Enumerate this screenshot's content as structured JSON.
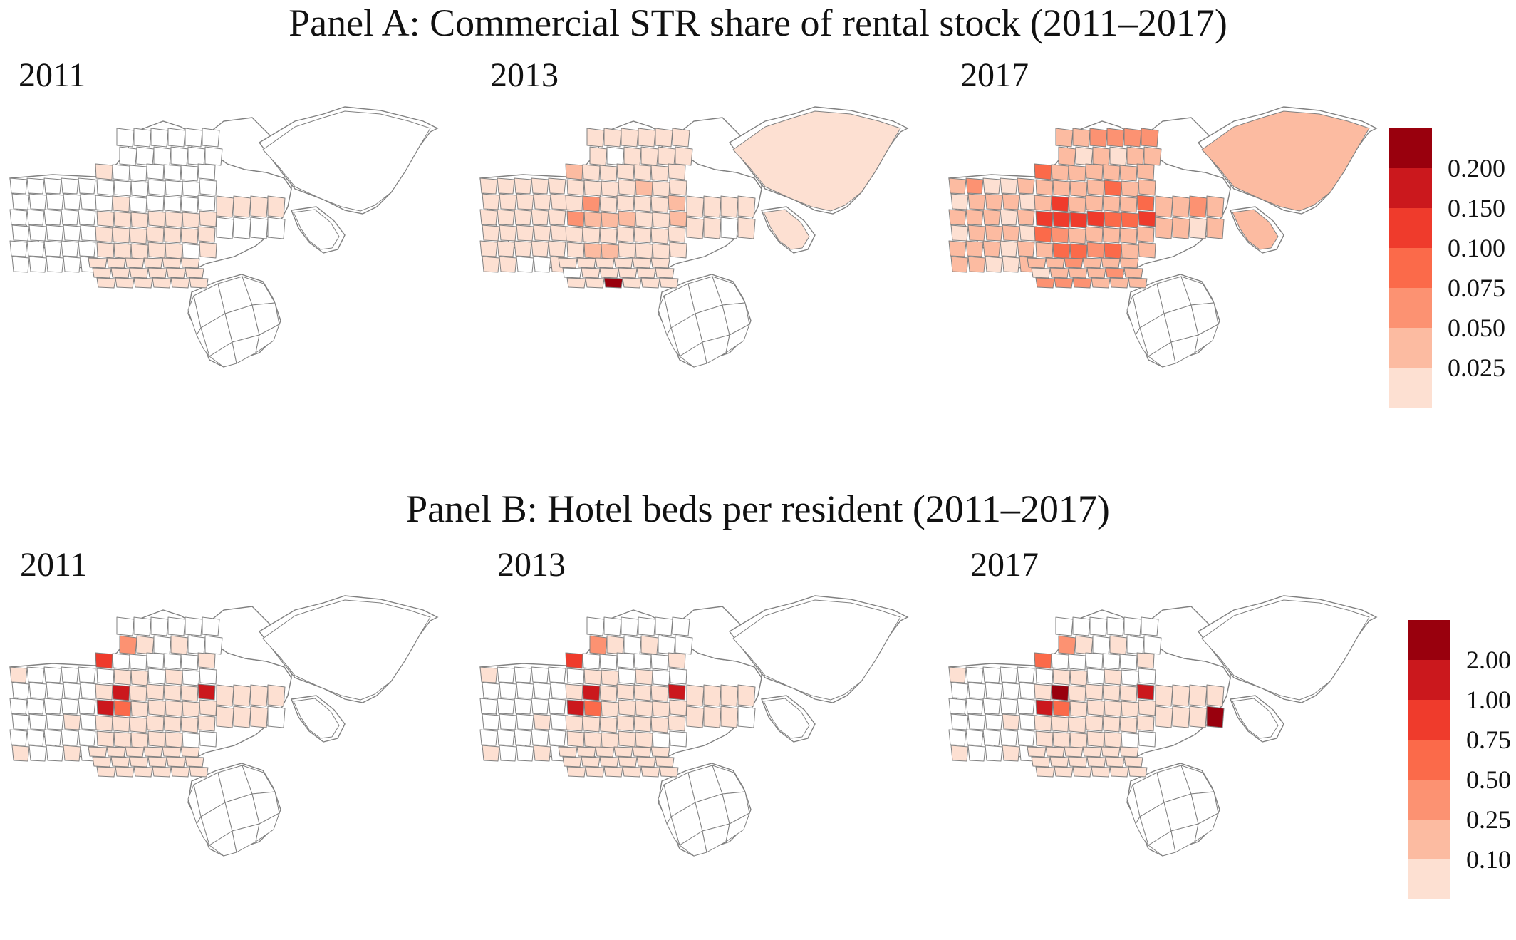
{
  "panels": [
    {
      "title": "Panel A: Commercial STR share of rental stock (2011–2017)",
      "maps": [
        {
          "year": "2011",
          "fills": [
            "n",
            "n",
            "n",
            "n",
            "n",
            "n",
            "n",
            "n",
            "n",
            "n",
            "n",
            "n",
            "n",
            "n",
            "n",
            "n",
            "n",
            "n",
            "n",
            "n",
            "n",
            "n",
            "n",
            "n",
            "n",
            "n",
            "n",
            "n",
            "n",
            "n",
            "n",
            "n",
            "n",
            "n",
            "n",
            "n",
            "n",
            "n",
            "n",
            "n",
            "n",
            "n",
            "0",
            "n",
            "n",
            "n",
            "n",
            "n",
            "n",
            "n",
            "n",
            "n",
            "n",
            "n",
            "n",
            "n",
            "n",
            "0",
            "n",
            "n",
            "n",
            "n",
            "n",
            "0",
            "0",
            "0",
            "0",
            "0",
            "0",
            "0",
            "0",
            "0",
            "0",
            "0",
            "0",
            "0",
            "0",
            "0",
            "0",
            "0",
            "0",
            "0",
            "n",
            "0",
            "0",
            "0",
            "0",
            "0",
            "0",
            "0",
            "0",
            "0",
            "0",
            "0",
            "0",
            "0",
            "0",
            "0",
            "0",
            "0",
            "0",
            "0",
            "0",
            "0",
            "0",
            "0",
            "n",
            "n",
            "n",
            "n",
            "n",
            "n"
          ]
        },
        {
          "year": "2013",
          "fills": [
            "0",
            "0",
            "0",
            "0",
            "0",
            "0",
            "0",
            "0",
            "0",
            "0",
            "0",
            "0",
            "0",
            "0",
            "0",
            "0",
            "0",
            "0",
            "0",
            "0",
            "0",
            "0",
            "0",
            "0",
            "0",
            "0",
            "0",
            "n",
            "n",
            "0",
            "0",
            "0",
            "0",
            "0",
            "0",
            "0",
            "0",
            "n",
            "0",
            "0",
            "0",
            "0",
            "1",
            "0",
            "0",
            "0",
            "0",
            "0",
            "0",
            "0",
            "0",
            "0",
            "0",
            "1",
            "0",
            "0",
            "0",
            "2",
            "0",
            "0",
            "0",
            "0",
            "1",
            "2",
            "1",
            "1",
            "1",
            "0",
            "0",
            "1",
            "0",
            "0",
            "0",
            "0",
            "0",
            "0",
            "0",
            "0",
            "1",
            "1",
            "0",
            "0",
            "0",
            "0",
            "0",
            "0",
            "0",
            "0",
            "0",
            "0",
            "n",
            "0",
            "0",
            "0",
            "0",
            "0",
            "0",
            "0",
            "6",
            "0",
            "0",
            "0",
            "0",
            "0",
            "0",
            "0",
            "0",
            "0",
            "n",
            "0",
            "0",
            "0"
          ]
        },
        {
          "year": "2017",
          "fills": [
            "1",
            "2",
            "0",
            "0",
            "1",
            "0",
            "1",
            "1",
            "1",
            "0",
            "1",
            "1",
            "1",
            "0",
            "1",
            "0",
            "1",
            "1",
            "1",
            "0",
            "1",
            "1",
            "1",
            "0",
            "1",
            "1",
            "1",
            "0",
            "0",
            "1",
            "1",
            "1",
            "2",
            "2",
            "2",
            "2",
            "1",
            "0",
            "1",
            "0",
            "1",
            "1",
            "3",
            "1",
            "1",
            "1",
            "1",
            "1",
            "1",
            "1",
            "1",
            "1",
            "1",
            "3",
            "1",
            "1",
            "1",
            "4",
            "1",
            "1",
            "1",
            "1",
            "3",
            "4",
            "4",
            "4",
            "4",
            "3",
            "3",
            "4",
            "3",
            "2",
            "1",
            "1",
            "1",
            "1",
            "1",
            "1",
            "3",
            "3",
            "2",
            "3",
            "1",
            "1",
            "1",
            "1",
            "2",
            "1",
            "1",
            "1",
            "0",
            "1",
            "1",
            "1",
            "2",
            "1",
            "2",
            "2",
            "2",
            "1",
            "1",
            "1",
            "1",
            "1",
            "2",
            "1",
            "1",
            "1",
            "0",
            "1",
            "1",
            "1"
          ]
        }
      ],
      "legend": {
        "ticks": [
          "0.200",
          "0.150",
          "0.100",
          "0.075",
          "0.050",
          "0.025"
        ]
      }
    },
    {
      "title": "Panel B: Hotel beds per resident (2011–2017)",
      "maps": [
        {
          "year": "2011",
          "fills": [
            "0",
            "n",
            "n",
            "n",
            "n",
            "n",
            "n",
            "n",
            "n",
            "n",
            "n",
            "n",
            "n",
            "n",
            "n",
            "n",
            "n",
            "n",
            "0",
            "n",
            "n",
            "n",
            "n",
            "n",
            "n",
            "0",
            "n",
            "n",
            "0",
            "n",
            "n",
            "n",
            "n",
            "n",
            "n",
            "n",
            "2",
            "0",
            "n",
            "0",
            "n",
            "n",
            "4",
            "n",
            "n",
            "n",
            "n",
            "n",
            "0",
            "n",
            "0",
            "0",
            "n",
            "0",
            "n",
            "n",
            "0",
            "5",
            "0",
            "0",
            "0",
            "0",
            "5",
            "5",
            "3",
            "0",
            "0",
            "0",
            "0",
            "0",
            "0",
            "0",
            "0",
            "0",
            "0",
            "0",
            "0",
            "0",
            "0",
            "0",
            "0",
            "0",
            "n",
            "n",
            "0",
            "0",
            "0",
            "0",
            "0",
            "0",
            "0",
            "0",
            "0",
            "0",
            "0",
            "0",
            "0",
            "0",
            "0",
            "0",
            "0",
            "0",
            "0",
            "0",
            "0",
            "0",
            "0",
            "0",
            "0",
            "n",
            "n",
            "n"
          ]
        },
        {
          "year": "2013",
          "fills": [
            "0",
            "n",
            "n",
            "n",
            "n",
            "n",
            "n",
            "n",
            "n",
            "n",
            "n",
            "n",
            "n",
            "n",
            "n",
            "n",
            "n",
            "n",
            "0",
            "n",
            "n",
            "n",
            "n",
            "n",
            "n",
            "0",
            "n",
            "n",
            "0",
            "n",
            "n",
            "n",
            "n",
            "n",
            "n",
            "n",
            "2",
            "0",
            "n",
            "0",
            "n",
            "n",
            "4",
            "n",
            "n",
            "n",
            "n",
            "n",
            "0",
            "n",
            "0",
            "0",
            "n",
            "0",
            "n",
            "n",
            "0",
            "5",
            "0",
            "0",
            "0",
            "0",
            "5",
            "5",
            "3",
            "0",
            "0",
            "0",
            "0",
            "0",
            "0",
            "0",
            "0",
            "0",
            "0",
            "0",
            "0",
            "0",
            "0",
            "0",
            "0",
            "0",
            "n",
            "n",
            "0",
            "0",
            "0",
            "0",
            "0",
            "0",
            "0",
            "0",
            "0",
            "0",
            "0",
            "0",
            "0",
            "0",
            "0",
            "0",
            "0",
            "0",
            "0",
            "0",
            "0",
            "0",
            "0",
            "0",
            "0",
            "n",
            "n",
            "n"
          ]
        },
        {
          "year": "2017",
          "fills": [
            "0",
            "n",
            "n",
            "n",
            "n",
            "n",
            "n",
            "n",
            "n",
            "n",
            "n",
            "n",
            "n",
            "n",
            "n",
            "n",
            "n",
            "n",
            "0",
            "n",
            "n",
            "n",
            "n",
            "n",
            "n",
            "0",
            "n",
            "n",
            "0",
            "n",
            "n",
            "n",
            "n",
            "n",
            "n",
            "n",
            "2",
            "0",
            "n",
            "0",
            "n",
            "n",
            "3",
            "n",
            "n",
            "n",
            "n",
            "n",
            "0",
            "n",
            "0",
            "0",
            "n",
            "0",
            "n",
            "n",
            "0",
            "6",
            "0",
            "0",
            "0",
            "0",
            "5",
            "5",
            "3",
            "0",
            "0",
            "0",
            "0",
            "0",
            "0",
            "0",
            "0",
            "0",
            "0",
            "0",
            "0",
            "0",
            "0",
            "0",
            "0",
            "0",
            "n",
            "n",
            "0",
            "0",
            "0",
            "0",
            "0",
            "0",
            "0",
            "0",
            "0",
            "0",
            "0",
            "0",
            "0",
            "0",
            "0",
            "0",
            "0",
            "0",
            "0",
            "0",
            "0",
            "0",
            "0",
            "0",
            "0",
            "6",
            "n",
            "n"
          ]
        }
      ],
      "legend": {
        "ticks": [
          "2.00",
          "1.00",
          "0.75",
          "0.50",
          "0.25",
          "0.10"
        ]
      }
    }
  ],
  "palette": [
    "#fde0d2",
    "#fcbba1",
    "#fc9272",
    "#fb6a4a",
    "#ef3b2c",
    "#cb181d",
    "#99000d"
  ],
  "no_data_fill": "#ffffff",
  "boundary_color": "#808080"
}
